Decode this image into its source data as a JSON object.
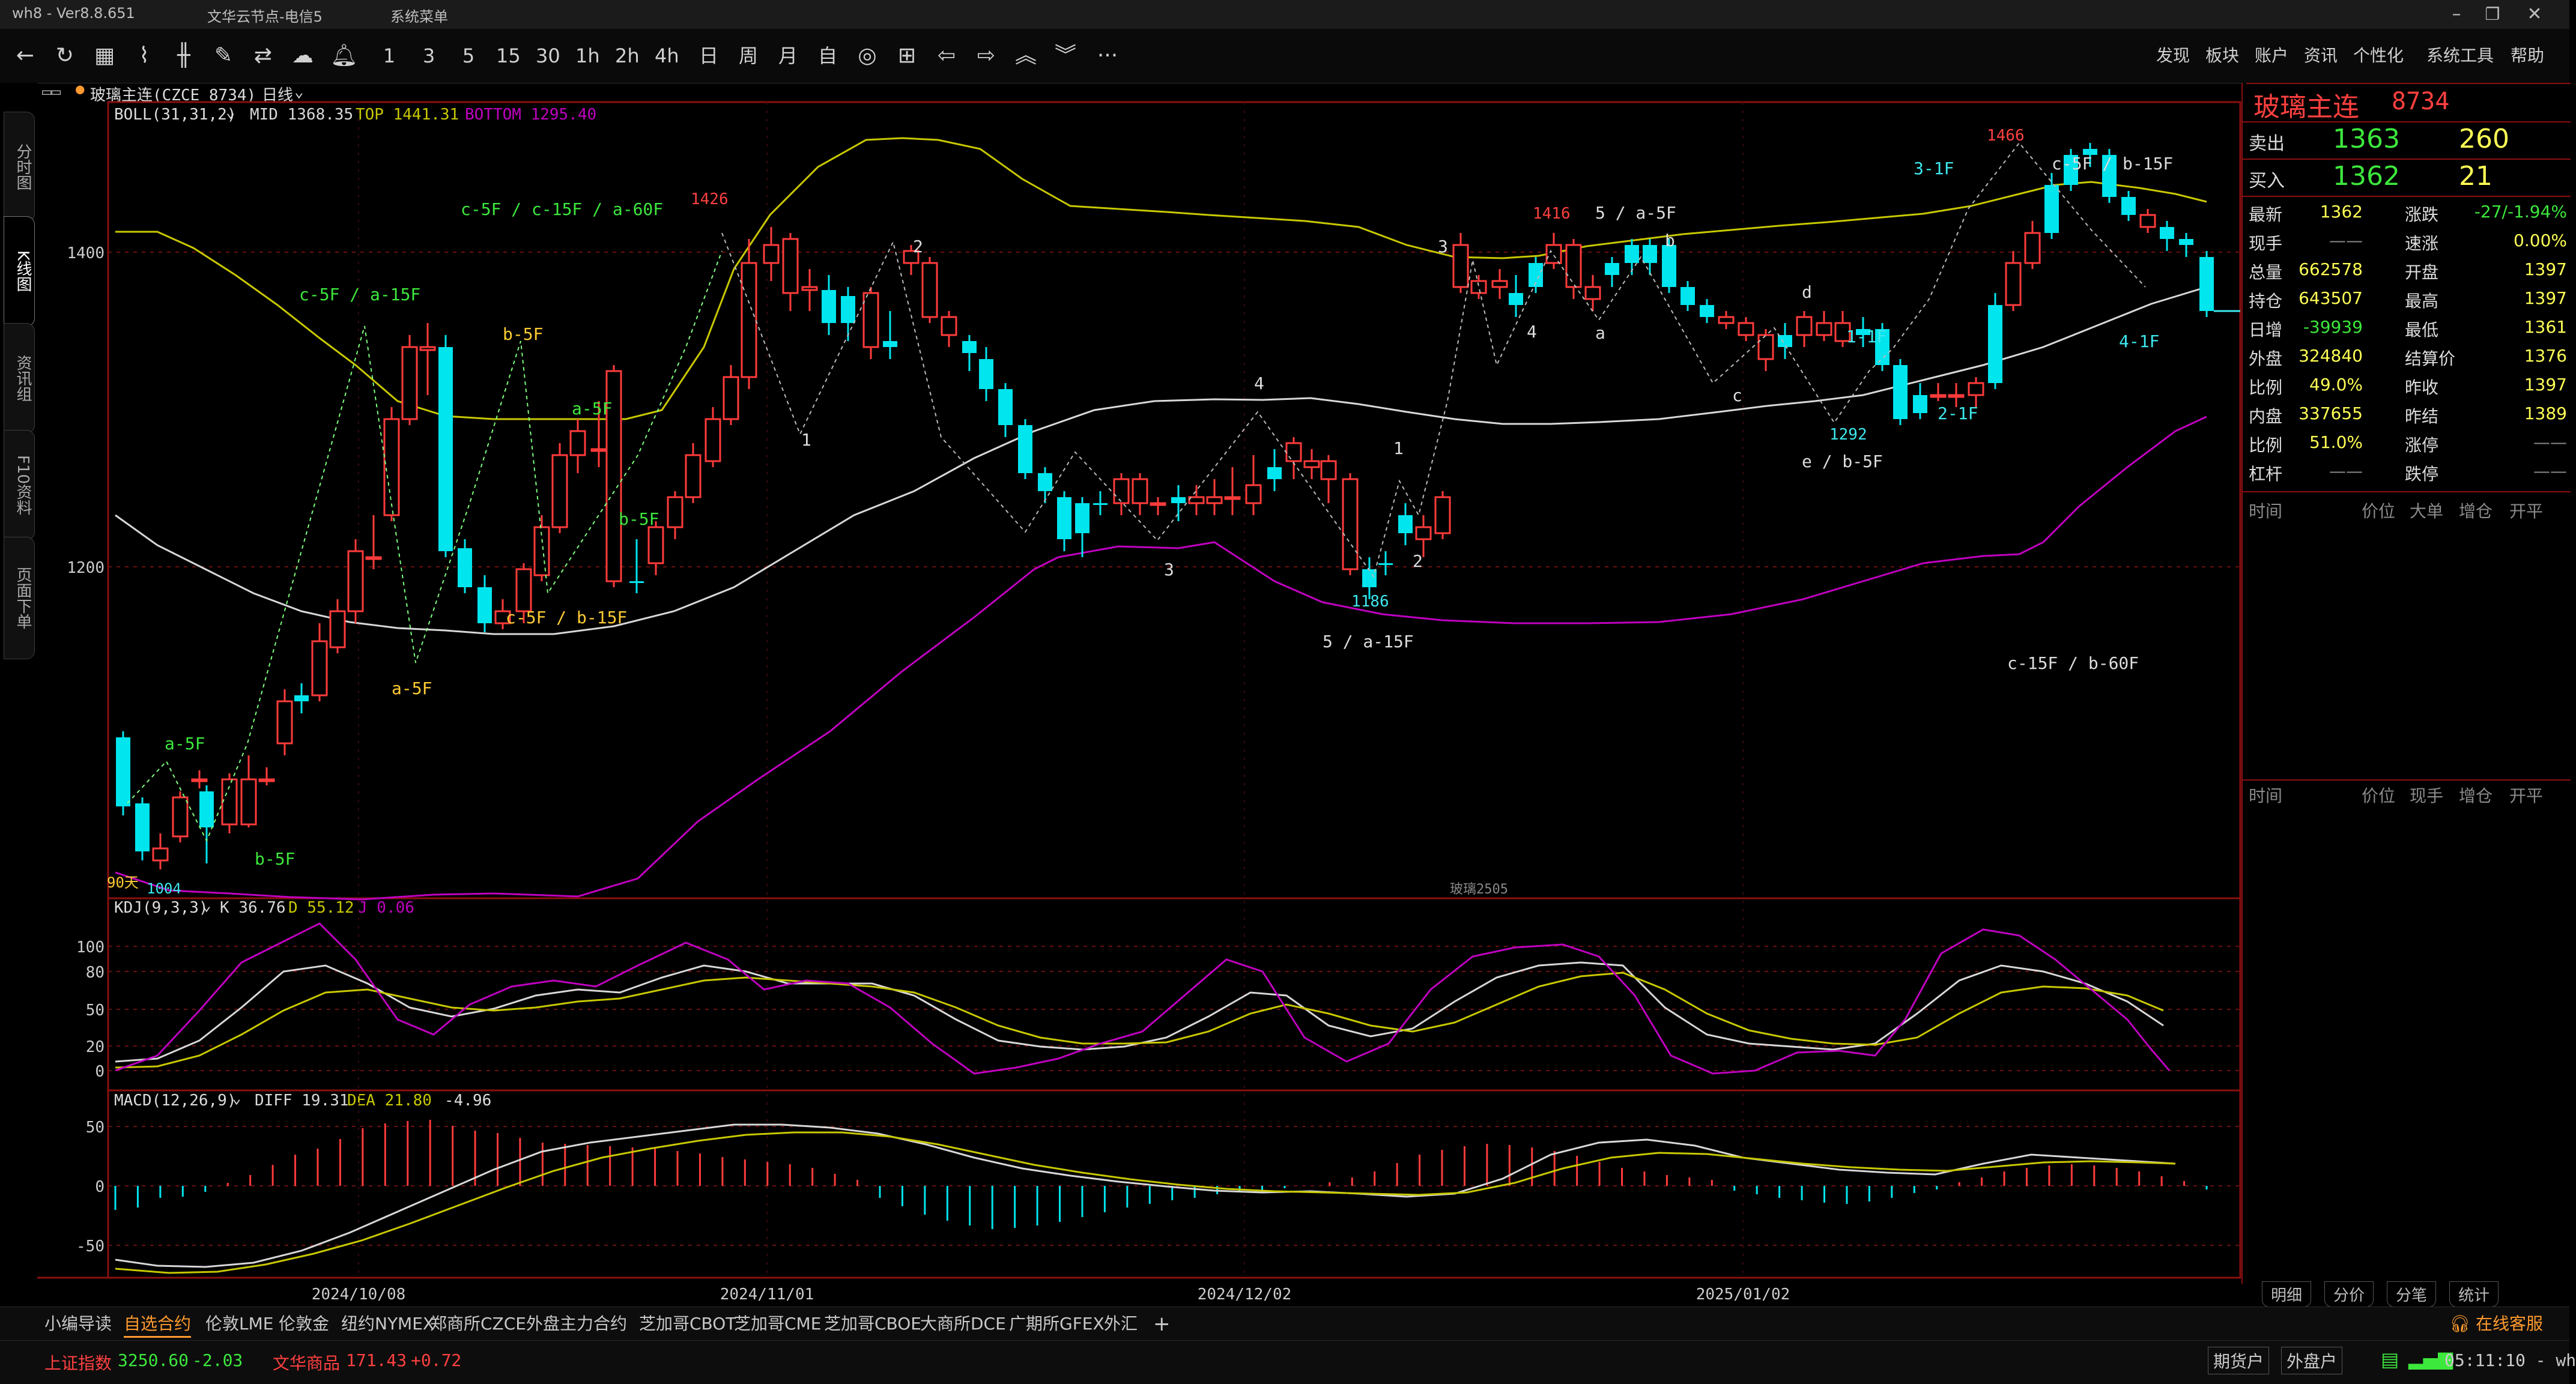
{
  "titlebar": {
    "app": "wh8 - Ver8.8.651",
    "server": "文华云节点-电信5",
    "menu": "系统菜单"
  },
  "toolbar": {
    "periods": [
      "1",
      "3",
      "5",
      "15",
      "30",
      "1h",
      "2h",
      "4h",
      "日",
      "周",
      "月",
      "自"
    ],
    "more": "···",
    "menus": [
      "发现",
      "板块",
      "账户",
      "资讯",
      "个性化",
      "系统工具",
      "帮助"
    ]
  },
  "left_tabs": [
    "分时图",
    "K线图",
    "资讯组",
    "F10资料",
    "页面下单"
  ],
  "chart": {
    "instrument_tag": "玻璃主连(CZCE 8734)",
    "period_select": "日线",
    "boll": {
      "label": "BOLL(31,31,2)",
      "mid": "MID 1368.35",
      "top": "TOP 1441.31",
      "bottom": "BOTTOM 1295.40"
    },
    "y_ticks": [
      "1400",
      "1200"
    ],
    "dates": [
      "2024/10/08",
      "2024/11/01",
      "2024/12/02",
      "2025/01/02"
    ],
    "annotations": {
      "c5_a15_top": "c-5F / a-15F",
      "c5_c15_a60": "c-5F / c-15F / a-60F",
      "b5f_top": "b-5F",
      "a5f_mid": "a-5F",
      "b5f_mid": "b-5F",
      "c5_b15": "c-5F / b-15F",
      "a5f_low": "a-5F",
      "a5f_start": "a-5F",
      "b5f_start": "b-5F",
      "days90": "90天",
      "p1004": "1004",
      "p1426": "1426",
      "w2": "2",
      "w1": "1",
      "w3": "3",
      "w4": "4",
      "w5_a15": "5 / a-15F",
      "p1186": "1186",
      "w1b": "1",
      "w2b": "2",
      "w3b": "3",
      "p1416": "1416",
      "w4b": "4",
      "w5_a5": "5 / a-5F",
      "sa": "a",
      "sb": "b",
      "sc": "c",
      "sd": "d",
      "se_b5": "e / b-5F",
      "p1292": "1292",
      "m1_1f": "1-1F",
      "m2_1f": "2-1F",
      "m3_1f": "3-1F",
      "m4_1f": "4-1F",
      "p1466": "1466",
      "c5_b15_top": "c-5F / b-15F",
      "c15_b60": "c-15F / b-60F",
      "watermark": "玻璃2505"
    },
    "kdj": {
      "label": "KDJ(9,3,3)",
      "k": "K 36.76",
      "d": "D 55.12",
      "j": "J 0.06",
      "ticks": [
        "100",
        "80",
        "50",
        "20",
        "0"
      ]
    },
    "macd": {
      "label": "MACD(12,26,9)",
      "diff": "DIFF 19.31",
      "dea": "DEA 21.80",
      "macd": "-4.96",
      "ticks": [
        "50",
        "0",
        "-50"
      ]
    }
  },
  "quote": {
    "title": "玻璃主连",
    "code": "8734",
    "ask_label": "卖出",
    "ask_price": "1363",
    "ask_vol": "260",
    "bid_label": "买入",
    "bid_price": "1362",
    "bid_vol": "21",
    "rows": [
      [
        "最新",
        "1362",
        "涨跌",
        "-27/-1.94%"
      ],
      [
        "现手",
        "——",
        "速涨",
        "0.00%"
      ],
      [
        "总量",
        "662578",
        "开盘",
        "1397"
      ],
      [
        "持仓",
        "643507",
        "最高",
        "1397"
      ],
      [
        "日增",
        "-39939",
        "最低",
        "1361"
      ],
      [
        "外盘",
        "324840",
        "结算价",
        "1376"
      ],
      [
        "比例",
        "49.0%",
        "昨收",
        "1397"
      ],
      [
        "内盘",
        "337655",
        "昨结",
        "1389"
      ],
      [
        "比例",
        "51.0%",
        "涨停",
        "——"
      ],
      [
        "杠杆",
        "——",
        "跌停",
        "——"
      ]
    ],
    "ticks_header": [
      "时间",
      "价位",
      "大单",
      "增仓",
      "开平"
    ],
    "ticks_header2": [
      "时间",
      "价位",
      "现手",
      "增仓",
      "开平"
    ],
    "bottom_tabs": [
      "明细",
      "分价",
      "分笔",
      "统计"
    ]
  },
  "bottom_tabs": [
    "小编导读",
    "自选合约",
    "伦敦LME",
    "伦敦金",
    "纽约NYMEX",
    "郑商所CZCE",
    "外盘主力合约",
    "芝加哥CBOT",
    "芝加哥CME",
    "芝加哥CBOE",
    "大商所DCE",
    "广期所GFEX",
    "外汇",
    "+"
  ],
  "online_service": "在线客服",
  "status": {
    "index1_name": "上证指数",
    "index1_val": "3250.60",
    "index1_chg": "-2.03",
    "index2_name": "文华商品",
    "index2_val": "171.43",
    "index2_chg": "+0.72",
    "btn1": "期货户",
    "btn2": "外盘户",
    "time": "05:11:10 - wh"
  },
  "colors": {
    "up": "#ff3b3b",
    "down": "#00e5ee",
    "boll_upper": "#c8c800",
    "boll_mid": "#d8d8d8",
    "boll_lower": "#c000c0",
    "orange": "#ff9a2e"
  }
}
